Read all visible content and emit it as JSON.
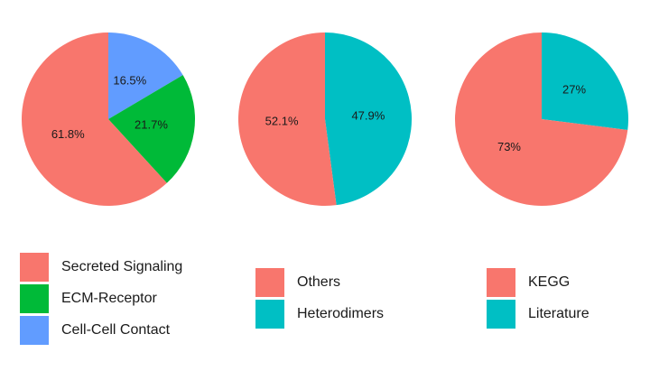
{
  "chart_data": [
    {
      "type": "pie",
      "slices": [
        {
          "label": "Cell-Cell Contact",
          "value": 16.5,
          "text": "16.5%",
          "color": "#619CFF"
        },
        {
          "label": "ECM-Receptor",
          "value": 21.7,
          "text": "21.7%",
          "color": "#00BA38"
        },
        {
          "label": "Secreted Signaling",
          "value": 61.8,
          "text": "61.8%",
          "color": "#F8766D"
        }
      ],
      "legend": [
        {
          "label": "Secreted Signaling",
          "color": "#F8766D"
        },
        {
          "label": "ECM-Receptor",
          "color": "#00BA38"
        },
        {
          "label": "Cell-Cell Contact",
          "color": "#619CFF"
        }
      ]
    },
    {
      "type": "pie",
      "slices": [
        {
          "label": "Heterodimers",
          "value": 47.9,
          "text": "47.9%",
          "color": "#00BFC4"
        },
        {
          "label": "Others",
          "value": 52.1,
          "text": "52.1%",
          "color": "#F8766D"
        }
      ],
      "legend": [
        {
          "label": "Others",
          "color": "#F8766D"
        },
        {
          "label": "Heterodimers",
          "color": "#00BFC4"
        }
      ]
    },
    {
      "type": "pie",
      "slices": [
        {
          "label": "Literature",
          "value": 27,
          "text": "27%",
          "color": "#00BFC4"
        },
        {
          "label": "KEGG",
          "value": 73,
          "text": "73%",
          "color": "#F8766D"
        }
      ],
      "legend": [
        {
          "label": "KEGG",
          "color": "#F8766D"
        },
        {
          "label": "Literature",
          "color": "#00BFC4"
        }
      ]
    }
  ]
}
